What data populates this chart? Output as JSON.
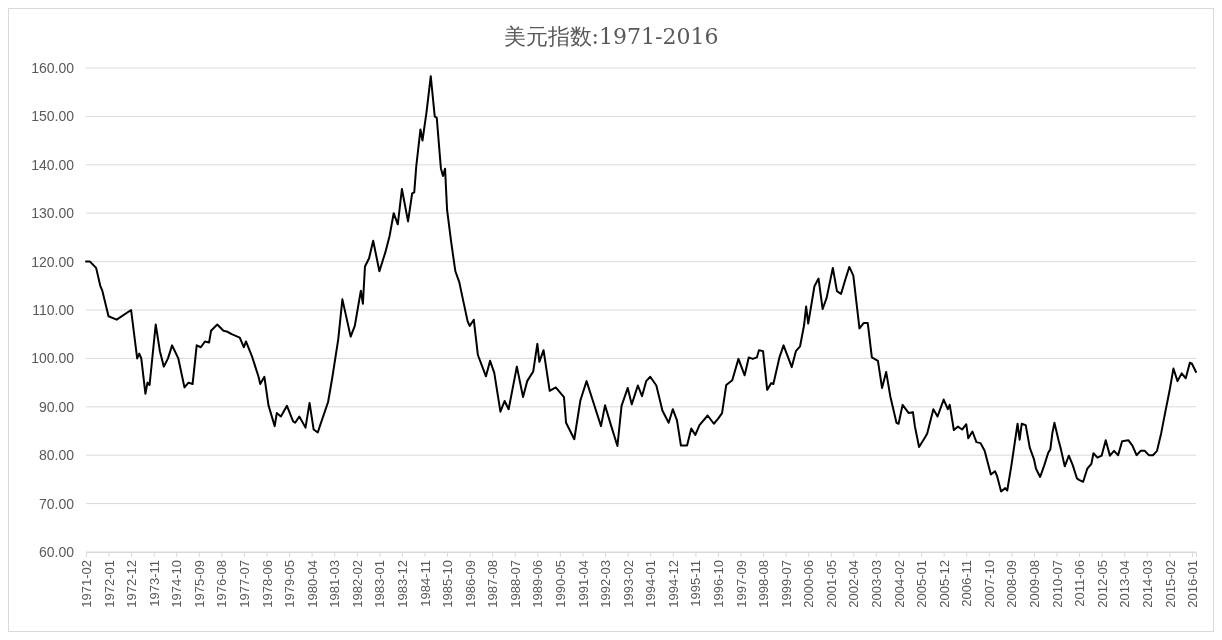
{
  "chart_data": {
    "type": "line",
    "title": "美元指数:1971-2016",
    "x": [
      "1971-02",
      "1971-04",
      "1971-07",
      "1971-09",
      "1971-10",
      "1972-01",
      "1972-05",
      "1972-12",
      "1973-03",
      "1973-04",
      "1973-05",
      "1973-07",
      "1973-08",
      "1973-09",
      "1973-12",
      "1974-02",
      "1974-04",
      "1974-06",
      "1974-08",
      "1974-11",
      "1975-02",
      "1975-04",
      "1975-06",
      "1975-08",
      "1975-10",
      "1975-12",
      "1976-02",
      "1976-03",
      "1976-06",
      "1976-09",
      "1976-11",
      "1977-01",
      "1977-05",
      "1977-07",
      "1977-08",
      "1977-11",
      "1978-02",
      "1978-03",
      "1978-05",
      "1978-07",
      "1978-10",
      "1978-11",
      "1979-01",
      "1979-04",
      "1979-07",
      "1979-08",
      "1979-10",
      "1980-01",
      "1980-03",
      "1980-05",
      "1980-07",
      "1980-08",
      "1980-12",
      "1981-02",
      "1981-05",
      "1981-07",
      "1981-11",
      "1982-01",
      "1982-04",
      "1982-05",
      "1982-06",
      "1982-08",
      "1982-10",
      "1983-01",
      "1983-04",
      "1983-06",
      "1983-08",
      "1983-10",
      "1983-12",
      "1984-03",
      "1984-05",
      "1984-06",
      "1984-07",
      "1984-09",
      "1984-10",
      "1984-12",
      "1985-02",
      "1985-04",
      "1985-05",
      "1985-07",
      "1985-08",
      "1985-09",
      "1985-10",
      "1985-12",
      "1986-02",
      "1986-04",
      "1986-05",
      "1986-08",
      "1986-09",
      "1986-11",
      "1987-01",
      "1987-05",
      "1987-07",
      "1987-09",
      "1987-12",
      "1988-02",
      "1988-04",
      "1988-08",
      "1988-11",
      "1989-01",
      "1989-04",
      "1989-06",
      "1989-07",
      "1989-09",
      "1989-12",
      "1990-03",
      "1990-07",
      "1990-08",
      "1990-12",
      "1991-03",
      "1991-06",
      "1991-09",
      "1992-01",
      "1992-03",
      "1992-06",
      "1992-09",
      "1992-11",
      "1993-02",
      "1993-04",
      "1993-07",
      "1993-09",
      "1993-11",
      "1994-01",
      "1994-04",
      "1994-07",
      "1994-10",
      "1994-12",
      "1995-02",
      "1995-04",
      "1995-07",
      "1995-09",
      "1995-11",
      "1996-01",
      "1996-05",
      "1996-08",
      "1996-10",
      "1996-12",
      "1997-02",
      "1997-05",
      "1997-08",
      "1997-11",
      "1998-01",
      "1998-03",
      "1998-05",
      "1998-06",
      "1998-08",
      "1998-10",
      "1998-12",
      "1999-01",
      "1999-04",
      "1999-06",
      "1999-10",
      "1999-12",
      "2000-02",
      "2000-04",
      "2000-05",
      "2000-06",
      "2000-09",
      "2000-11",
      "2001-01",
      "2001-03",
      "2001-06",
      "2001-08",
      "2001-10",
      "2001-12",
      "2002-02",
      "2002-04",
      "2002-07",
      "2002-09",
      "2002-11",
      "2003-01",
      "2003-04",
      "2003-06",
      "2003-08",
      "2003-10",
      "2004-01",
      "2004-02",
      "2004-04",
      "2004-07",
      "2004-09",
      "2004-10",
      "2004-12",
      "2005-03",
      "2005-04",
      "2005-07",
      "2005-09",
      "2005-12",
      "2006-02",
      "2006-03",
      "2006-05",
      "2006-07",
      "2006-09",
      "2006-11",
      "2006-12",
      "2007-02",
      "2007-04",
      "2007-06",
      "2007-08",
      "2007-11",
      "2008-01",
      "2008-02",
      "2008-04",
      "2008-06",
      "2008-07",
      "2008-09",
      "2008-12",
      "2009-01",
      "2009-02",
      "2009-04",
      "2009-06",
      "2009-08",
      "2009-09",
      "2009-11",
      "2010-01",
      "2010-03",
      "2010-04",
      "2010-05",
      "2010-06",
      "2010-08",
      "2010-09",
      "2010-11",
      "2011-01",
      "2011-03",
      "2011-05",
      "2011-06",
      "2011-08",
      "2011-10",
      "2011-12",
      "2012-01",
      "2012-03",
      "2012-05",
      "2012-07",
      "2012-09",
      "2012-11",
      "2013-01",
      "2013-03",
      "2013-06",
      "2013-08",
      "2013-10",
      "2013-12",
      "2014-02",
      "2014-04",
      "2014-06",
      "2014-08",
      "2014-10",
      "2014-12",
      "2015-02",
      "2015-04",
      "2015-06",
      "2015-08",
      "2015-10",
      "2015-12",
      "2016-01",
      "2016-03"
    ],
    "series": [
      {
        "color": "#000000",
        "values": [
          120,
          120,
          118.7,
          115,
          114,
          108.7,
          108,
          110,
          100,
          101,
          100,
          92.7,
          95,
          94.5,
          107,
          101.5,
          98.3,
          100,
          102.7,
          100,
          94,
          95,
          94.7,
          102.7,
          102.3,
          103.5,
          103.3,
          105.7,
          107,
          105.7,
          105.5,
          105,
          104.3,
          102.3,
          103.5,
          100.3,
          96.3,
          94.7,
          96.2,
          90.3,
          86,
          88.7,
          88,
          90.2,
          87,
          86.7,
          88,
          85.7,
          90.8,
          85.3,
          84.7,
          86,
          91,
          96,
          104,
          112.2,
          104.5,
          106.7,
          114,
          111.3,
          119,
          120.7,
          124.3,
          118,
          122,
          125.3,
          130,
          127.7,
          135,
          128.3,
          134.1,
          134.3,
          139.7,
          147.3,
          145,
          151,
          158.3,
          150,
          149.7,
          139.3,
          137.7,
          139.2,
          130.7,
          124,
          118,
          115.7,
          113.7,
          107.7,
          106.7,
          108,
          100.7,
          96.3,
          99.5,
          97,
          89,
          91.2,
          89.5,
          98.3,
          92,
          95.3,
          97.3,
          103,
          99.3,
          101.7,
          93.3,
          94,
          92,
          86.7,
          83.3,
          91.3,
          95.3,
          91.3,
          86,
          90.3,
          86,
          81.9,
          90.2,
          93.9,
          90.5,
          94.4,
          92.2,
          95.3,
          96.2,
          94.4,
          89.2,
          86.7,
          89.5,
          87.2,
          82,
          82,
          85.5,
          84.2,
          86.2,
          88.2,
          86.5,
          87.5,
          88.7,
          94.5,
          95.5,
          99.9,
          96.5,
          100.2,
          99.9,
          100.2,
          101.7,
          101.5,
          93.5,
          94.9,
          94.7,
          100.2,
          102.7,
          98.2,
          101.5,
          102.5,
          106.9,
          110.7,
          107.2,
          114.9,
          116.5,
          110.2,
          112.5,
          118.7,
          113.9,
          113.3,
          116.2,
          118.9,
          117.1,
          106.2,
          107.3,
          107.3,
          100.2,
          99.5,
          93.9,
          97.2,
          92.2,
          86.7,
          86.5,
          90.4,
          88.7,
          88.9,
          85.9,
          81.7,
          83.7,
          84.5,
          89.5,
          88,
          91.5,
          89.5,
          90.4,
          85.2,
          85.9,
          85.3,
          86.4,
          83.5,
          84.9,
          82.7,
          82.5,
          80.9,
          76,
          76.7,
          75.7,
          72.5,
          73.2,
          72.7,
          77.9,
          86.5,
          83.2,
          86.5,
          86.2,
          81.5,
          79.2,
          77.2,
          75.5,
          77.9,
          80.5,
          81.2,
          84.5,
          86.7,
          83.1,
          81.5,
          77.7,
          79.9,
          77.9,
          75.2,
          74.9,
          74.5,
          77.2,
          78.2,
          80.4,
          79.5,
          79.9,
          83.1,
          79.9,
          80.9,
          80,
          82.9,
          83.1,
          82,
          80,
          80.9,
          80.9,
          80,
          80,
          80.9,
          84.5,
          88.9,
          93.2,
          97.9,
          95.3,
          96.9,
          95.9,
          99.1,
          98.9,
          97.2
        ]
      }
    ],
    "xlim": [
      "1971-02",
      "2016-03"
    ],
    "xticks": [
      "1971-02",
      "1972-01",
      "1972-12",
      "1973-11",
      "1974-10",
      "1975-09",
      "1976-08",
      "1977-07",
      "1978-06",
      "1979-05",
      "1980-04",
      "1981-03",
      "1982-02",
      "1983-01",
      "1983-12",
      "1984-11",
      "1985-10",
      "1986-09",
      "1987-08",
      "1988-07",
      "1989-06",
      "1990-05",
      "1991-04",
      "1992-03",
      "1993-02",
      "1994-01",
      "1994-12",
      "1995-11",
      "1996-10",
      "1997-09",
      "1998-08",
      "1999-07",
      "2000-06",
      "2001-05",
      "2002-04",
      "2003-03",
      "2004-02",
      "2005-01",
      "2005-12",
      "2006-11",
      "2007-10",
      "2008-09",
      "2009-08",
      "2010-07",
      "2011-06",
      "2012-05",
      "2013-04",
      "2014-03",
      "2015-02",
      "2016-01"
    ],
    "ylim": [
      60,
      160
    ],
    "yticks": [
      {
        "value": 60,
        "label": "60.00"
      },
      {
        "value": 70,
        "label": "70.00"
      },
      {
        "value": 80,
        "label": "80.00"
      },
      {
        "value": 90,
        "label": "90.00"
      },
      {
        "value": 100,
        "label": "100.00"
      },
      {
        "value": 110,
        "label": "110.00"
      },
      {
        "value": 120,
        "label": "120.00"
      },
      {
        "value": 130,
        "label": "130.00"
      },
      {
        "value": 140,
        "label": "140.00"
      },
      {
        "value": 150,
        "label": "150.00"
      },
      {
        "value": 160,
        "label": "160.00"
      }
    ],
    "grid": "y",
    "marker": "none",
    "line_style": "solid"
  }
}
